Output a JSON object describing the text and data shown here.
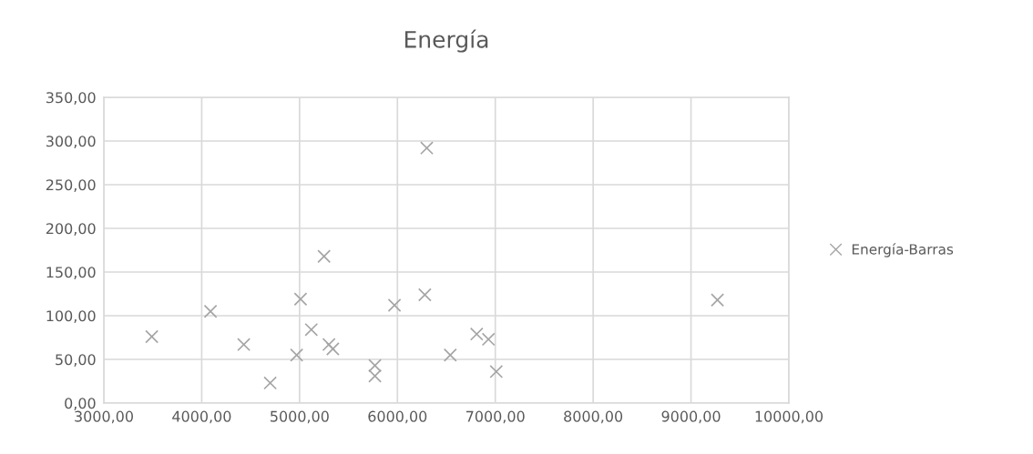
{
  "chart_data": {
    "type": "scatter",
    "title": "Energía",
    "x": [
      3490,
      4090,
      4430,
      4700,
      4970,
      5010,
      5120,
      5250,
      5300,
      5340,
      5770,
      5770,
      5970,
      6280,
      6300,
      6540,
      6810,
      6930,
      7010,
      9270
    ],
    "series": [
      {
        "name": "Energía-Barras",
        "color": "#a5a5a5",
        "values": [
          76,
          105,
          67,
          23,
          55,
          119,
          84,
          168,
          67,
          62,
          43,
          31,
          112,
          124,
          292,
          55,
          79,
          73,
          36,
          118
        ]
      }
    ],
    "xlim": [
      3000,
      10000
    ],
    "xticks": [
      {
        "value": 3000,
        "label": "3000,00"
      },
      {
        "value": 4000,
        "label": "4000,00"
      },
      {
        "value": 5000,
        "label": "5000,00"
      },
      {
        "value": 6000,
        "label": "6000,00"
      },
      {
        "value": 7000,
        "label": "7000,00"
      },
      {
        "value": 8000,
        "label": "8000,00"
      },
      {
        "value": 9000,
        "label": "9000,00"
      },
      {
        "value": 10000,
        "label": "10000,00"
      }
    ],
    "ylim": [
      0,
      350
    ],
    "yticks": [
      {
        "value": 0,
        "label": "0,00"
      },
      {
        "value": 50,
        "label": "50,00"
      },
      {
        "value": 100,
        "label": "100,00"
      },
      {
        "value": 150,
        "label": "150,00"
      },
      {
        "value": 200,
        "label": "200,00"
      },
      {
        "value": 250,
        "label": "250,00"
      },
      {
        "value": 300,
        "label": "300,00"
      },
      {
        "value": 350,
        "label": "350,00"
      }
    ],
    "grid": true,
    "legend": "right",
    "marker": "cross"
  }
}
